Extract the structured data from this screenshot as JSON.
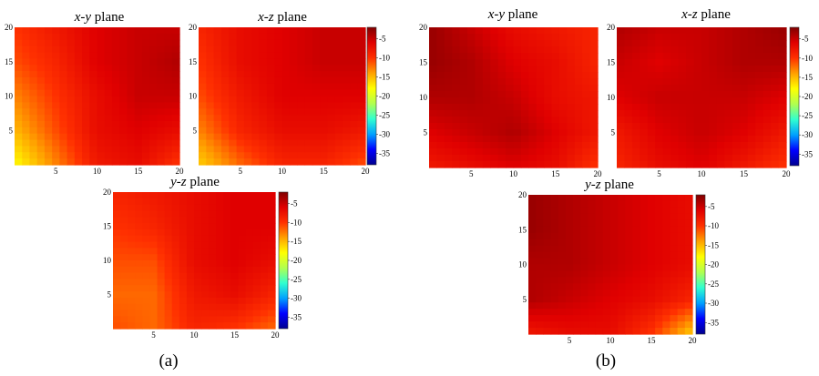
{
  "figure": {
    "caption_a": "(a)",
    "caption_b": "(b)"
  },
  "chart_data": [
    {
      "type": "heatmap",
      "group": "(a)",
      "title_prefix": "x-y",
      "title_suffix": " plane",
      "xlim": [
        0,
        20
      ],
      "ylim": [
        0,
        20
      ],
      "xticks": [
        "5",
        "10",
        "15",
        "20"
      ],
      "yticks": [
        "5",
        "10",
        "15",
        "20"
      ],
      "grid_x": [
        0,
        5,
        10,
        15,
        20
      ],
      "grid_y": [
        20,
        15,
        10,
        5,
        0
      ],
      "values": [
        [
          -10,
          -8,
          -6,
          -5,
          -5
        ],
        [
          -11,
          -9,
          -6,
          -5,
          -4
        ],
        [
          -13,
          -10,
          -7,
          -5,
          -5
        ],
        [
          -15,
          -11,
          -7,
          -6,
          -7
        ],
        [
          -18,
          -13,
          -8,
          -7,
          -10
        ]
      ]
    },
    {
      "type": "heatmap",
      "group": "(a)",
      "title_prefix": "x-z",
      "title_suffix": " plane",
      "xlim": [
        0,
        20
      ],
      "ylim": [
        0,
        20
      ],
      "xticks": [
        "5",
        "10",
        "15",
        "20"
      ],
      "yticks": [
        "5",
        "10",
        "15",
        "20"
      ],
      "grid_x": [
        0,
        5,
        10,
        15,
        20
      ],
      "grid_y": [
        20,
        15,
        10,
        5,
        0
      ],
      "values": [
        [
          -9,
          -7,
          -6,
          -5,
          -5
        ],
        [
          -10,
          -7,
          -6,
          -5,
          -5
        ],
        [
          -11,
          -8,
          -6,
          -6,
          -6
        ],
        [
          -13,
          -9,
          -7,
          -7,
          -8
        ],
        [
          -16,
          -12,
          -9,
          -9,
          -11
        ]
      ]
    },
    {
      "type": "heatmap",
      "group": "(a)",
      "title_prefix": "y-z",
      "title_suffix": " plane",
      "xlim": [
        0,
        20
      ],
      "ylim": [
        0,
        20
      ],
      "xticks": [
        "5",
        "10",
        "15",
        "20"
      ],
      "yticks": [
        "5",
        "10",
        "15",
        "20"
      ],
      "grid_x": [
        0,
        5,
        10,
        15,
        20
      ],
      "grid_y": [
        20,
        15,
        10,
        5,
        0
      ],
      "values": [
        [
          -9,
          -8,
          -7,
          -6,
          -6
        ],
        [
          -10,
          -9,
          -7,
          -6,
          -6
        ],
        [
          -11,
          -11,
          -7,
          -6,
          -7
        ],
        [
          -12,
          -12,
          -8,
          -7,
          -9
        ],
        [
          -11,
          -12,
          -9,
          -10,
          -12
        ]
      ]
    },
    {
      "type": "heatmap",
      "group": "(b)",
      "title_prefix": "x-y",
      "title_suffix": " plane",
      "xlim": [
        0,
        20
      ],
      "ylim": [
        0,
        20
      ],
      "xticks": [
        "5",
        "10",
        "15",
        "20"
      ],
      "yticks": [
        "5",
        "10",
        "15",
        "20"
      ],
      "grid_x": [
        0,
        5,
        10,
        15,
        20
      ],
      "grid_y": [
        20,
        15,
        10,
        5,
        0
      ],
      "values": [
        [
          -3,
          -5,
          -7,
          -8,
          -9
        ],
        [
          -3,
          -4,
          -6,
          -7,
          -9
        ],
        [
          -4,
          -4,
          -5,
          -7,
          -8
        ],
        [
          -6,
          -5,
          -4,
          -6,
          -8
        ],
        [
          -8,
          -7,
          -6,
          -7,
          -10
        ]
      ]
    },
    {
      "type": "heatmap",
      "group": "(b)",
      "title_prefix": "x-z",
      "title_suffix": " plane",
      "xlim": [
        0,
        20
      ],
      "ylim": [
        0,
        20
      ],
      "xticks": [
        "5",
        "10",
        "15",
        "20"
      ],
      "yticks": [
        "5",
        "10",
        "15",
        "20"
      ],
      "grid_x": [
        0,
        5,
        10,
        15,
        20
      ],
      "grid_y": [
        20,
        15,
        10,
        5,
        0
      ],
      "values": [
        [
          -4,
          -5,
          -5,
          -4,
          -3
        ],
        [
          -5,
          -6,
          -5,
          -4,
          -4
        ],
        [
          -6,
          -5,
          -5,
          -5,
          -6
        ],
        [
          -8,
          -6,
          -5,
          -6,
          -8
        ],
        [
          -9,
          -7,
          -6,
          -8,
          -10
        ]
      ]
    },
    {
      "type": "heatmap",
      "group": "(b)",
      "title_prefix": "y-z",
      "title_suffix": " plane",
      "xlim": [
        0,
        20
      ],
      "ylim": [
        0,
        20
      ],
      "xticks": [
        "5",
        "10",
        "15",
        "20"
      ],
      "yticks": [
        "5",
        "10",
        "15",
        "20"
      ],
      "grid_x": [
        0,
        5,
        10,
        15,
        20
      ],
      "grid_y": [
        20,
        15,
        10,
        5,
        0
      ],
      "values": [
        [
          -3,
          -4,
          -5,
          -6,
          -7
        ],
        [
          -3,
          -4,
          -5,
          -6,
          -7
        ],
        [
          -4,
          -4,
          -5,
          -6,
          -7
        ],
        [
          -4,
          -5,
          -6,
          -7,
          -9
        ],
        [
          -8,
          -7,
          -7,
          -10,
          -16
        ]
      ]
    }
  ],
  "colorbars": [
    {
      "group": "(a)",
      "range": [
        -38,
        -2
      ],
      "ticks": [
        "-5",
        "-10",
        "-15",
        "-20",
        "-25",
        "-30",
        "-35"
      ],
      "tick_values": [
        -5,
        -10,
        -15,
        -20,
        -25,
        -30,
        -35
      ]
    },
    {
      "group": "(a)",
      "range": [
        -38,
        -2
      ],
      "ticks": [
        "-5",
        "-10",
        "-15",
        "-20",
        "-25",
        "-30",
        "-35"
      ],
      "tick_values": [
        -5,
        -10,
        -15,
        -20,
        -25,
        -30,
        -35
      ]
    },
    {
      "group": "(b)",
      "range": [
        -38,
        -2
      ],
      "ticks": [
        "-5",
        "-10",
        "-15",
        "-20",
        "-25",
        "-30",
        "-35"
      ],
      "tick_values": [
        -5,
        -10,
        -15,
        -20,
        -25,
        -30,
        -35
      ]
    },
    {
      "group": "(b)",
      "range": [
        -38,
        -2
      ],
      "ticks": [
        "-5",
        "-10",
        "-15",
        "-20",
        "-25",
        "-30",
        "-35"
      ],
      "tick_values": [
        -5,
        -10,
        -15,
        -20,
        -25,
        -30,
        -35
      ]
    }
  ],
  "colormap": [
    "#00008f",
    "#0000ff",
    "#00a0ff",
    "#30ffd0",
    "#b0ff50",
    "#ffff00",
    "#ffa000",
    "#ff3000",
    "#e00000",
    "#800000"
  ]
}
